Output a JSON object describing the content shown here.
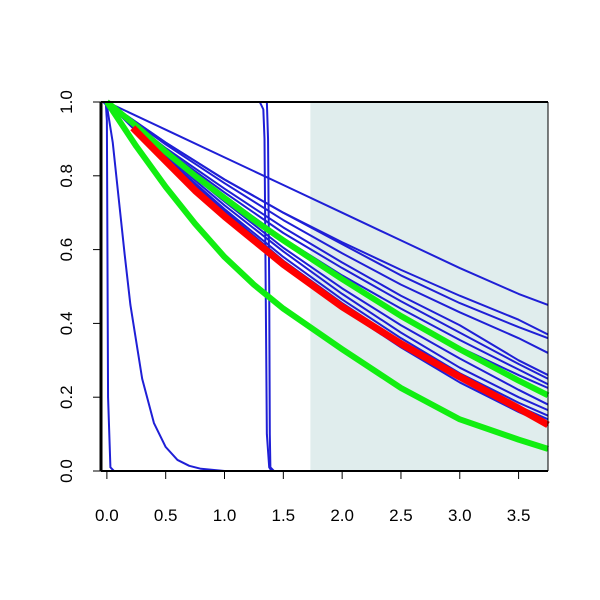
{
  "chart_data": {
    "type": "line",
    "title": "",
    "xlabel": "",
    "ylabel": "",
    "xlim": [
      -0.05,
      3.75
    ],
    "ylim": [
      0,
      1
    ],
    "xticks": [
      0.0,
      0.5,
      1.0,
      1.5,
      2.0,
      2.5,
      3.0,
      3.5
    ],
    "xtick_labels": [
      "0.0",
      "0.5",
      "1.0",
      "1.5",
      "2.0",
      "2.5",
      "3.0",
      "3.5"
    ],
    "yticks": [
      0.0,
      0.2,
      0.4,
      0.6,
      0.8,
      1.0
    ],
    "ytick_labels": [
      "0.0",
      "0.2",
      "0.4",
      "0.6",
      "0.8",
      "1.0"
    ],
    "grid": false,
    "legend": "none",
    "shaded_region": {
      "x_start": 1.73,
      "x_end": 3.75,
      "color": "#e0eded"
    },
    "colors": {
      "blue": "#1f1fd6",
      "red": "#ff0000",
      "green": "#11ee11",
      "axis": "#000000"
    },
    "series": [
      {
        "color": "blue",
        "width": 2,
        "points": [
          [
            -0.03,
            1.0
          ],
          [
            -0.01,
            1.0
          ],
          [
            0.0,
            0.95
          ],
          [
            0.01,
            0.2
          ],
          [
            0.03,
            0.01
          ],
          [
            0.06,
            0.0
          ],
          [
            3.75,
            0.0
          ]
        ]
      },
      {
        "color": "blue",
        "width": 2,
        "points": [
          [
            -0.03,
            1.0
          ],
          [
            0.0,
            0.99
          ],
          [
            0.05,
            0.89
          ],
          [
            0.1,
            0.74
          ],
          [
            0.15,
            0.59
          ],
          [
            0.2,
            0.45
          ],
          [
            0.3,
            0.25
          ],
          [
            0.4,
            0.13
          ],
          [
            0.5,
            0.065
          ],
          [
            0.6,
            0.03
          ],
          [
            0.7,
            0.014
          ],
          [
            0.8,
            0.006
          ],
          [
            1.0,
            0.0
          ],
          [
            3.75,
            0.0
          ]
        ]
      },
      {
        "color": "blue",
        "width": 2,
        "points": [
          [
            -0.03,
            1.0
          ],
          [
            1.3,
            1.0
          ],
          [
            1.33,
            0.98
          ],
          [
            1.34,
            0.9
          ],
          [
            1.35,
            0.5
          ],
          [
            1.36,
            0.1
          ],
          [
            1.38,
            0.01
          ],
          [
            1.4,
            0.0
          ],
          [
            3.75,
            0.0
          ]
        ]
      },
      {
        "color": "blue",
        "width": 2,
        "points": [
          [
            -0.03,
            1.0
          ],
          [
            1.36,
            1.0
          ],
          [
            1.37,
            0.9
          ],
          [
            1.38,
            0.5
          ],
          [
            1.385,
            0.1
          ],
          [
            1.39,
            0.01
          ],
          [
            1.42,
            0.0
          ],
          [
            3.75,
            0.0
          ]
        ]
      },
      {
        "color": "blue",
        "width": 2,
        "points": [
          [
            0.0,
            1.0
          ],
          [
            0.5,
            0.925
          ],
          [
            1.0,
            0.85
          ],
          [
            1.5,
            0.775
          ],
          [
            2.0,
            0.7
          ],
          [
            2.5,
            0.625
          ],
          [
            3.0,
            0.55
          ],
          [
            3.5,
            0.48
          ],
          [
            3.75,
            0.45
          ]
        ]
      },
      {
        "color": "blue",
        "width": 2,
        "points": [
          [
            0.0,
            1.0
          ],
          [
            0.5,
            0.89
          ],
          [
            1.0,
            0.79
          ],
          [
            1.5,
            0.7
          ],
          [
            2.0,
            0.62
          ],
          [
            2.5,
            0.545
          ],
          [
            3.0,
            0.475
          ],
          [
            3.5,
            0.41
          ],
          [
            3.75,
            0.37
          ]
        ]
      },
      {
        "color": "blue",
        "width": 2,
        "points": [
          [
            0.0,
            1.0
          ],
          [
            0.5,
            0.89
          ],
          [
            1.0,
            0.79
          ],
          [
            1.5,
            0.7
          ],
          [
            2.0,
            0.615
          ],
          [
            2.5,
            0.53
          ],
          [
            3.0,
            0.455
          ],
          [
            3.5,
            0.39
          ],
          [
            3.75,
            0.36
          ]
        ]
      },
      {
        "color": "blue",
        "width": 2,
        "points": [
          [
            0.0,
            1.0
          ],
          [
            0.5,
            0.885
          ],
          [
            1.0,
            0.78
          ],
          [
            1.5,
            0.68
          ],
          [
            2.0,
            0.59
          ],
          [
            2.5,
            0.505
          ],
          [
            3.0,
            0.43
          ],
          [
            3.5,
            0.36
          ],
          [
            3.75,
            0.32
          ]
        ]
      },
      {
        "color": "blue",
        "width": 2,
        "points": [
          [
            0.0,
            1.0
          ],
          [
            0.5,
            0.875
          ],
          [
            1.0,
            0.765
          ],
          [
            1.5,
            0.66
          ],
          [
            2.0,
            0.565
          ],
          [
            2.5,
            0.475
          ],
          [
            3.0,
            0.395
          ],
          [
            3.5,
            0.3
          ],
          [
            3.75,
            0.26
          ]
        ]
      },
      {
        "color": "blue",
        "width": 2,
        "points": [
          [
            0.0,
            1.0
          ],
          [
            0.5,
            0.87
          ],
          [
            1.0,
            0.755
          ],
          [
            1.5,
            0.645
          ],
          [
            2.0,
            0.55
          ],
          [
            2.5,
            0.46
          ],
          [
            3.0,
            0.375
          ],
          [
            3.5,
            0.29
          ],
          [
            3.75,
            0.25
          ]
        ]
      },
      {
        "color": "blue",
        "width": 2,
        "points": [
          [
            0.0,
            1.0
          ],
          [
            0.5,
            0.865
          ],
          [
            1.0,
            0.745
          ],
          [
            1.5,
            0.63
          ],
          [
            2.0,
            0.53
          ],
          [
            2.5,
            0.44
          ],
          [
            3.0,
            0.355
          ],
          [
            3.5,
            0.275
          ],
          [
            3.75,
            0.235
          ]
        ]
      },
      {
        "color": "blue",
        "width": 2,
        "points": [
          [
            0.0,
            1.0
          ],
          [
            0.5,
            0.86
          ],
          [
            1.0,
            0.735
          ],
          [
            1.5,
            0.62
          ],
          [
            2.0,
            0.515
          ],
          [
            2.5,
            0.42
          ],
          [
            3.0,
            0.335
          ],
          [
            3.5,
            0.26
          ],
          [
            3.75,
            0.225
          ]
        ]
      },
      {
        "color": "blue",
        "width": 2,
        "points": [
          [
            0.0,
            1.0
          ],
          [
            0.5,
            0.86
          ],
          [
            1.0,
            0.73
          ],
          [
            1.5,
            0.605
          ],
          [
            2.0,
            0.495
          ],
          [
            2.5,
            0.395
          ],
          [
            3.0,
            0.305
          ],
          [
            3.5,
            0.22
          ],
          [
            3.75,
            0.18
          ]
        ]
      },
      {
        "color": "blue",
        "width": 2,
        "points": [
          [
            0.0,
            1.0
          ],
          [
            0.5,
            0.855
          ],
          [
            1.0,
            0.72
          ],
          [
            1.5,
            0.595
          ],
          [
            2.0,
            0.48
          ],
          [
            2.5,
            0.375
          ],
          [
            3.0,
            0.28
          ],
          [
            3.5,
            0.2
          ],
          [
            3.75,
            0.165
          ]
        ]
      },
      {
        "color": "blue",
        "width": 2,
        "points": [
          [
            0.0,
            1.0
          ],
          [
            0.5,
            0.85
          ],
          [
            1.0,
            0.71
          ],
          [
            1.5,
            0.58
          ],
          [
            2.0,
            0.465
          ],
          [
            2.5,
            0.36
          ],
          [
            3.0,
            0.265
          ],
          [
            3.5,
            0.185
          ],
          [
            3.75,
            0.15
          ]
        ]
      },
      {
        "color": "blue",
        "width": 2,
        "points": [
          [
            0.0,
            1.0
          ],
          [
            0.5,
            0.845
          ],
          [
            1.0,
            0.705
          ],
          [
            1.5,
            0.57
          ],
          [
            2.0,
            0.455
          ],
          [
            2.5,
            0.35
          ],
          [
            3.0,
            0.255
          ],
          [
            3.5,
            0.175
          ],
          [
            3.75,
            0.14
          ]
        ]
      },
      {
        "color": "blue",
        "width": 2,
        "points": [
          [
            0.0,
            1.0
          ],
          [
            0.5,
            0.84
          ],
          [
            1.0,
            0.695
          ],
          [
            1.5,
            0.56
          ],
          [
            2.0,
            0.44
          ],
          [
            2.5,
            0.335
          ],
          [
            3.0,
            0.24
          ],
          [
            3.5,
            0.16
          ],
          [
            3.75,
            0.125
          ]
        ]
      },
      {
        "color": "green",
        "width": 6,
        "points": [
          [
            0.0,
            1.0
          ],
          [
            0.25,
            0.935
          ],
          [
            0.5,
            0.865
          ],
          [
            0.75,
            0.8
          ],
          [
            1.0,
            0.74
          ],
          [
            1.25,
            0.68
          ],
          [
            1.5,
            0.625
          ],
          [
            2.0,
            0.52
          ],
          [
            2.5,
            0.42
          ],
          [
            3.0,
            0.33
          ],
          [
            3.5,
            0.245
          ],
          [
            3.75,
            0.205
          ]
        ]
      },
      {
        "color": "red",
        "width": 7,
        "points": [
          [
            0.22,
            0.93
          ],
          [
            0.5,
            0.84
          ],
          [
            0.75,
            0.76
          ],
          [
            1.0,
            0.69
          ],
          [
            1.25,
            0.625
          ],
          [
            1.5,
            0.56
          ],
          [
            2.0,
            0.445
          ],
          [
            2.5,
            0.345
          ],
          [
            3.0,
            0.255
          ],
          [
            3.5,
            0.17
          ],
          [
            3.75,
            0.125
          ]
        ]
      },
      {
        "color": "green",
        "width": 6,
        "points": [
          [
            0.0,
            1.0
          ],
          [
            0.25,
            0.88
          ],
          [
            0.5,
            0.77
          ],
          [
            0.75,
            0.67
          ],
          [
            1.0,
            0.58
          ],
          [
            1.25,
            0.505
          ],
          [
            1.5,
            0.44
          ],
          [
            2.0,
            0.33
          ],
          [
            2.5,
            0.225
          ],
          [
            3.0,
            0.14
          ],
          [
            3.5,
            0.085
          ],
          [
            3.75,
            0.06
          ]
        ]
      }
    ]
  }
}
